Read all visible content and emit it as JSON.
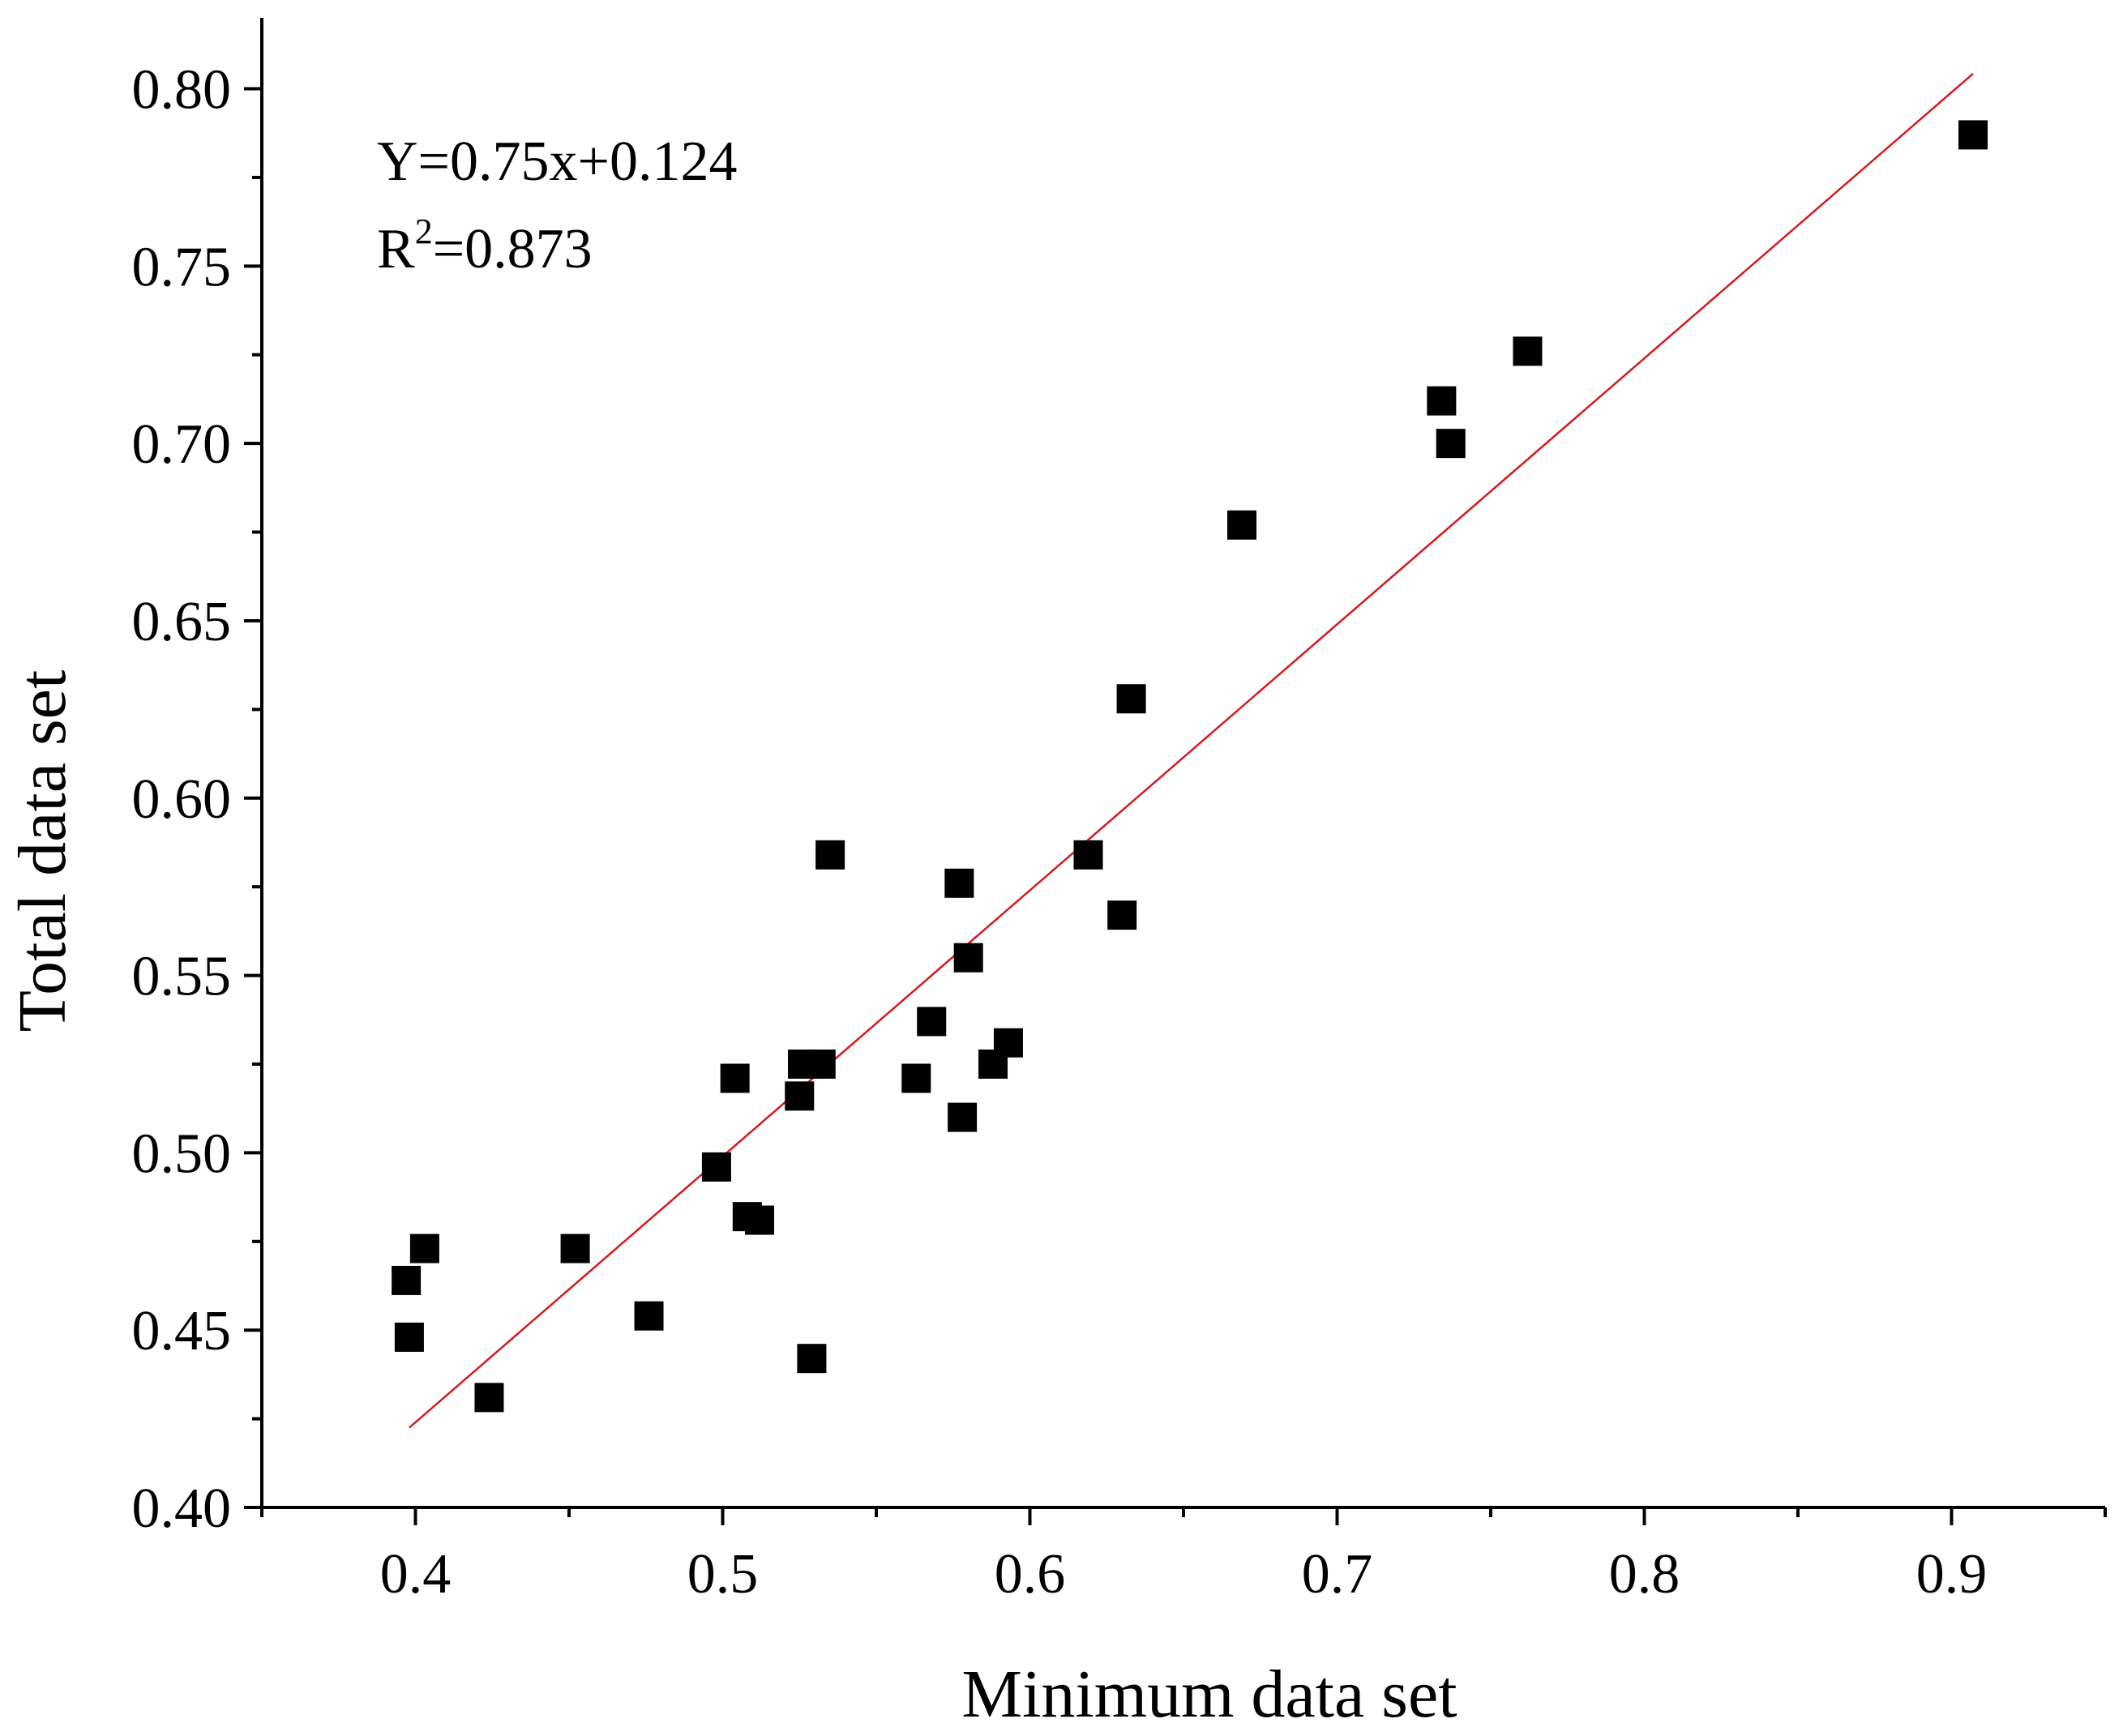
{
  "chart_data": {
    "type": "scatter",
    "xlabel": "Minimum data set",
    "ylabel": "Total data set",
    "xlim": [
      0.35,
      0.95
    ],
    "ylim": [
      0.4,
      0.82
    ],
    "xticks": [
      0.4,
      0.5,
      0.6,
      0.7,
      0.8,
      0.9
    ],
    "xtick_labels": [
      "0.4",
      "0.5",
      "0.6",
      "0.7",
      "0.8",
      "0.9"
    ],
    "yticks": [
      0.4,
      0.45,
      0.5,
      0.55,
      0.6,
      0.65,
      0.7,
      0.75,
      0.8
    ],
    "ytick_labels": [
      "0.40",
      "0.45",
      "0.50",
      "0.55",
      "0.60",
      "0.65",
      "0.70",
      "0.75",
      "0.80"
    ],
    "fit_line": {
      "slope": 0.75,
      "intercept": 0.124,
      "x_range": [
        0.398,
        0.907
      ],
      "color": "#d7191c"
    },
    "annotations": {
      "equation": "Y=0.75x+0.124",
      "r2_prefix": "R",
      "r2_sup": "2",
      "r2_value": "=0.873"
    },
    "marker_color": "#000000",
    "points": [
      [
        0.907,
        0.787
      ],
      [
        0.762,
        0.726
      ],
      [
        0.734,
        0.712
      ],
      [
        0.737,
        0.7
      ],
      [
        0.669,
        0.677
      ],
      [
        0.633,
        0.628
      ],
      [
        0.535,
        0.584
      ],
      [
        0.619,
        0.584
      ],
      [
        0.577,
        0.576
      ],
      [
        0.63,
        0.567
      ],
      [
        0.58,
        0.555
      ],
      [
        0.568,
        0.537
      ],
      [
        0.593,
        0.531
      ],
      [
        0.526,
        0.525
      ],
      [
        0.532,
        0.525
      ],
      [
        0.588,
        0.525
      ],
      [
        0.504,
        0.521
      ],
      [
        0.563,
        0.521
      ],
      [
        0.525,
        0.516
      ],
      [
        0.578,
        0.51
      ],
      [
        0.498,
        0.496
      ],
      [
        0.508,
        0.482
      ],
      [
        0.512,
        0.481
      ],
      [
        0.403,
        0.473
      ],
      [
        0.452,
        0.473
      ],
      [
        0.397,
        0.464
      ],
      [
        0.476,
        0.454
      ],
      [
        0.398,
        0.448
      ],
      [
        0.529,
        0.442
      ],
      [
        0.424,
        0.431
      ]
    ]
  }
}
